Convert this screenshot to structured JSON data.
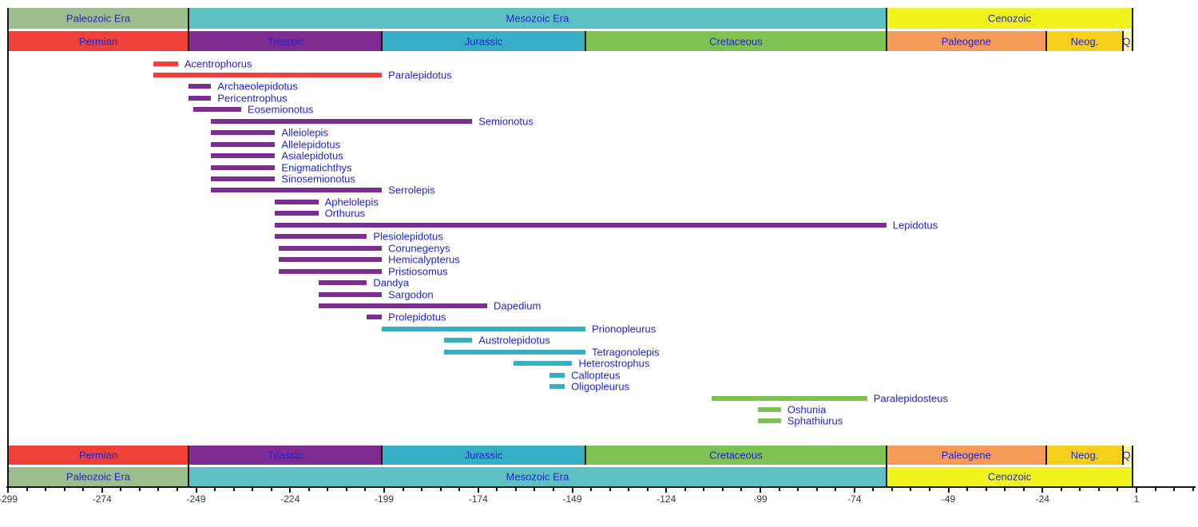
{
  "chart_data": {
    "type": "timeline",
    "description": "Fossil range chart of semionotiform and related fish genera versus geologic time (millions of years)",
    "text_color": "#2323CD",
    "tick_label_color": "#383838",
    "line_color": "#151515",
    "x_axis": {
      "unit": "million years",
      "min": -299,
      "max": 1,
      "major_tick_step": 25,
      "minor_tick_step": 5,
      "major_tick_labels": [
        "-299",
        "-274",
        "-249",
        "-224",
        "-199",
        "-174",
        "-149",
        "-124",
        "-99",
        "-74",
        "-49",
        "-24",
        "1"
      ]
    },
    "eras": [
      {
        "label": "Paleozoic Era",
        "from": -299,
        "to": -251,
        "color": "#9CBE8C"
      },
      {
        "label": "Mesozoic Era",
        "from": -251,
        "to": -65.5,
        "color": "#5DC0C3"
      },
      {
        "label": "Cenozoic",
        "from": -65.5,
        "to": 0,
        "color": "#F0F320"
      }
    ],
    "periods": [
      {
        "label": "Permian",
        "from": -299,
        "to": -251,
        "color": "#EE4137"
      },
      {
        "label": "Triassic",
        "from": -251,
        "to": -199.6,
        "color": "#7E2C92"
      },
      {
        "label": "Jurassic",
        "from": -199.6,
        "to": -145.5,
        "color": "#36AEC6"
      },
      {
        "label": "Cretaceous",
        "from": -145.5,
        "to": -65.5,
        "color": "#7EC253"
      },
      {
        "label": "Paleogene",
        "from": -65.5,
        "to": -23.03,
        "color": "#F69A58"
      },
      {
        "label": "Neog.",
        "from": -23.03,
        "to": -2.588,
        "color": "#F6CE1C"
      },
      {
        "label": "Q.",
        "from": -2.588,
        "to": 0,
        "color": "#F7F7A3"
      }
    ],
    "taxa": [
      {
        "name": "Acentrophorus",
        "from": -260.4,
        "to": -253.8,
        "color": "#EE4137"
      },
      {
        "name": "Paralepidotus",
        "from": -260.4,
        "to": -199.6,
        "color": "#EE4137"
      },
      {
        "name": "Archaeolepidotus",
        "from": -251,
        "to": -245,
        "color": "#7E2C92"
      },
      {
        "name": "Pericentrophus",
        "from": -251,
        "to": -245,
        "color": "#7E2C92"
      },
      {
        "name": "Eosemionotus",
        "from": -249.7,
        "to": -237,
        "color": "#7E2C92"
      },
      {
        "name": "Semionotus",
        "from": -245,
        "to": -175.6,
        "color": "#7E2C92"
      },
      {
        "name": "Alleiolepis",
        "from": -245,
        "to": -228,
        "color": "#7E2C92"
      },
      {
        "name": "Allelepidotus",
        "from": -245,
        "to": -228,
        "color": "#7E2C92"
      },
      {
        "name": "Asialepidotus",
        "from": -245,
        "to": -228,
        "color": "#7E2C92"
      },
      {
        "name": "Enigmatichthys",
        "from": -245,
        "to": -228,
        "color": "#7E2C92"
      },
      {
        "name": "Sinosemionotus",
        "from": -245,
        "to": -228,
        "color": "#7E2C92"
      },
      {
        "name": "Serrolepis",
        "from": -245,
        "to": -199.6,
        "color": "#7E2C92"
      },
      {
        "name": "Aphelolepis",
        "from": -228,
        "to": -216.5,
        "color": "#7E2C92"
      },
      {
        "name": "Orthurus",
        "from": -228,
        "to": -216.5,
        "color": "#7E2C92"
      },
      {
        "name": "Lepidotus",
        "from": -228,
        "to": -65.5,
        "color": "#7E2C92"
      },
      {
        "name": "Plesiolepidotus",
        "from": -228,
        "to": -203.6,
        "color": "#7E2C92"
      },
      {
        "name": "Corunegenys",
        "from": -227,
        "to": -199.6,
        "color": "#7E2C92"
      },
      {
        "name": "Hemicalypterus",
        "from": -227,
        "to": -199.6,
        "color": "#7E2C92"
      },
      {
        "name": "Pristiosomus",
        "from": -227,
        "to": -199.6,
        "color": "#7E2C92"
      },
      {
        "name": "Dandya",
        "from": -216.5,
        "to": -203.6,
        "color": "#7E2C92"
      },
      {
        "name": "Sargodon",
        "from": -216.5,
        "to": -199.6,
        "color": "#7E2C92"
      },
      {
        "name": "Dapedium",
        "from": -216.5,
        "to": -171.6,
        "color": "#7E2C92"
      },
      {
        "name": "Prolepidotus",
        "from": -203.6,
        "to": -199.6,
        "color": "#7E2C92"
      },
      {
        "name": "Prionopleurus",
        "from": -199.6,
        "to": -145.5,
        "color": "#36AEC6"
      },
      {
        "name": "Austrolepidotus",
        "from": -183,
        "to": -175.6,
        "color": "#36AEC6"
      },
      {
        "name": "Tetragonolepis",
        "from": -183,
        "to": -145.5,
        "color": "#36AEC6"
      },
      {
        "name": "Heterostrophus",
        "from": -164.7,
        "to": -149,
        "color": "#36AEC6"
      },
      {
        "name": "Callopteus",
        "from": -155,
        "to": -151,
        "color": "#36AEC6"
      },
      {
        "name": "Oligopleurus",
        "from": -155,
        "to": -151,
        "color": "#36AEC6"
      },
      {
        "name": "Paralepidosteus",
        "from": -112,
        "to": -70.6,
        "color": "#7EC253"
      },
      {
        "name": "Oshunia",
        "from": -99.6,
        "to": -93.5,
        "color": "#7EC253"
      },
      {
        "name": "Sphathiurus",
        "from": -99.6,
        "to": -93.5,
        "color": "#7EC253"
      }
    ]
  }
}
